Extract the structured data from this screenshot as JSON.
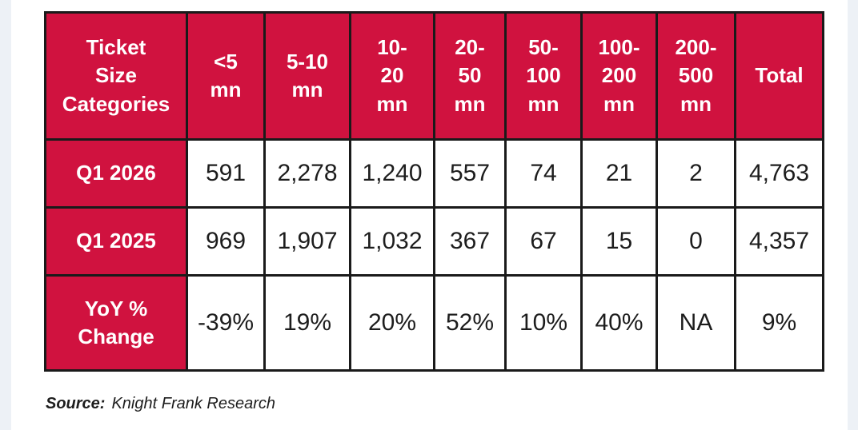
{
  "colors": {
    "accent_red": "#d0123f",
    "table_border": "#1a1a1a",
    "edge_strip": "#edf1f6",
    "background": "#ffffff"
  },
  "table": {
    "header": [
      "Ticket\nSize\nCategories",
      "<5\nmn",
      "5-10\nmn",
      "10-\n20\nmn",
      "20-\n50\nmn",
      "50-\n100\nmn",
      "100-\n200\nmn",
      "200-\n500\nmn",
      "Total"
    ],
    "rows": [
      {
        "label": "Q1 2026",
        "values": [
          "591",
          "2,278",
          "1,240",
          "557",
          "74",
          "21",
          "2",
          "4,763"
        ]
      },
      {
        "label": "Q1 2025",
        "values": [
          "969",
          "1,907",
          "1,032",
          "367",
          "67",
          "15",
          "0",
          "4,357"
        ]
      },
      {
        "label": "YoY %\nChange",
        "values": [
          "-39%",
          "19%",
          "20%",
          "52%",
          "10%",
          "40%",
          "NA",
          "9%"
        ]
      }
    ]
  },
  "source": {
    "prefix": "Source:",
    "text": "Knight Frank Research"
  },
  "chart_data": {
    "type": "table",
    "row_header": "Ticket Size Categories",
    "categories": [
      "<5 mn",
      "5-10 mn",
      "10-20 mn",
      "20-50 mn",
      "50-100 mn",
      "100-200 mn",
      "200-500 mn",
      "Total"
    ],
    "series": [
      {
        "name": "Q1 2026",
        "values": [
          591,
          2278,
          1240,
          557,
          74,
          21,
          2,
          4763
        ]
      },
      {
        "name": "Q1 2025",
        "values": [
          969,
          1907,
          1032,
          367,
          67,
          15,
          0,
          4357
        ]
      },
      {
        "name": "YoY % Change",
        "values": [
          "-39%",
          "19%",
          "20%",
          "52%",
          "10%",
          "40%",
          "NA",
          "9%"
        ]
      }
    ],
    "source": "Source: Knight Frank Research",
    "legend_position": "none",
    "grid": true
  }
}
